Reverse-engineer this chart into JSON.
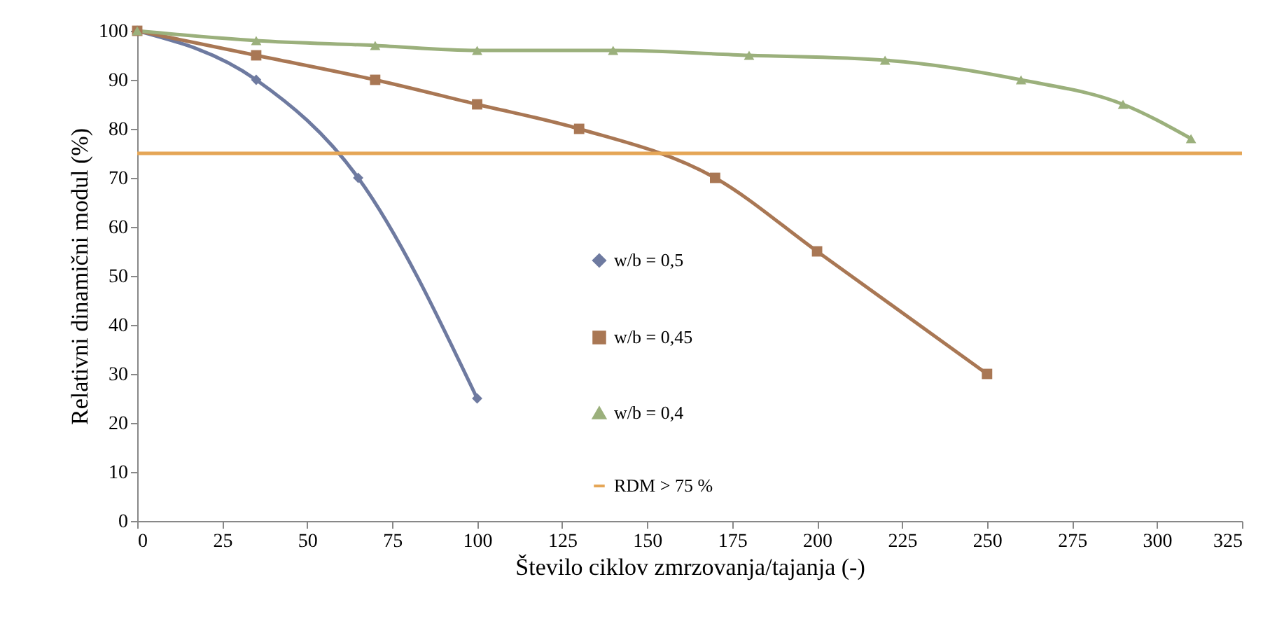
{
  "chart_data": {
    "type": "line",
    "xlabel": "Število ciklov zmrzovanja/tajanja (-)",
    "ylabel": "Relativni dinamični modul (%)",
    "xlim": [
      0,
      325
    ],
    "xticks": [
      0,
      25,
      50,
      75,
      100,
      125,
      150,
      175,
      200,
      225,
      250,
      275,
      300,
      325
    ],
    "ylim": [
      0,
      100
    ],
    "yticks": [
      0,
      10,
      20,
      30,
      40,
      50,
      60,
      70,
      80,
      90,
      100
    ],
    "grid": false,
    "legend": "center",
    "series": [
      {
        "name": "w/b = 0,5",
        "color": "#6e7aa0",
        "marker": "diamond",
        "x": [
          0,
          35,
          65,
          100
        ],
        "values": [
          100,
          90,
          70,
          25
        ]
      },
      {
        "name": "w/b = 0,45",
        "color": "#a97754",
        "marker": "square",
        "x": [
          0,
          35,
          70,
          100,
          130,
          170,
          200,
          250
        ],
        "values": [
          100,
          95,
          90,
          85,
          80,
          70,
          55,
          30
        ]
      },
      {
        "name": "w/b = 0,4",
        "color": "#9bb07c",
        "marker": "triangle",
        "x": [
          0,
          35,
          70,
          100,
          140,
          180,
          220,
          260,
          290,
          310
        ],
        "values": [
          100,
          98,
          97,
          96,
          96,
          95,
          94,
          90,
          85,
          78
        ]
      }
    ],
    "ref_lines": [
      {
        "axis": "y",
        "value": 75,
        "label": "RDM > 75 %",
        "color": "#e5a656"
      }
    ]
  }
}
